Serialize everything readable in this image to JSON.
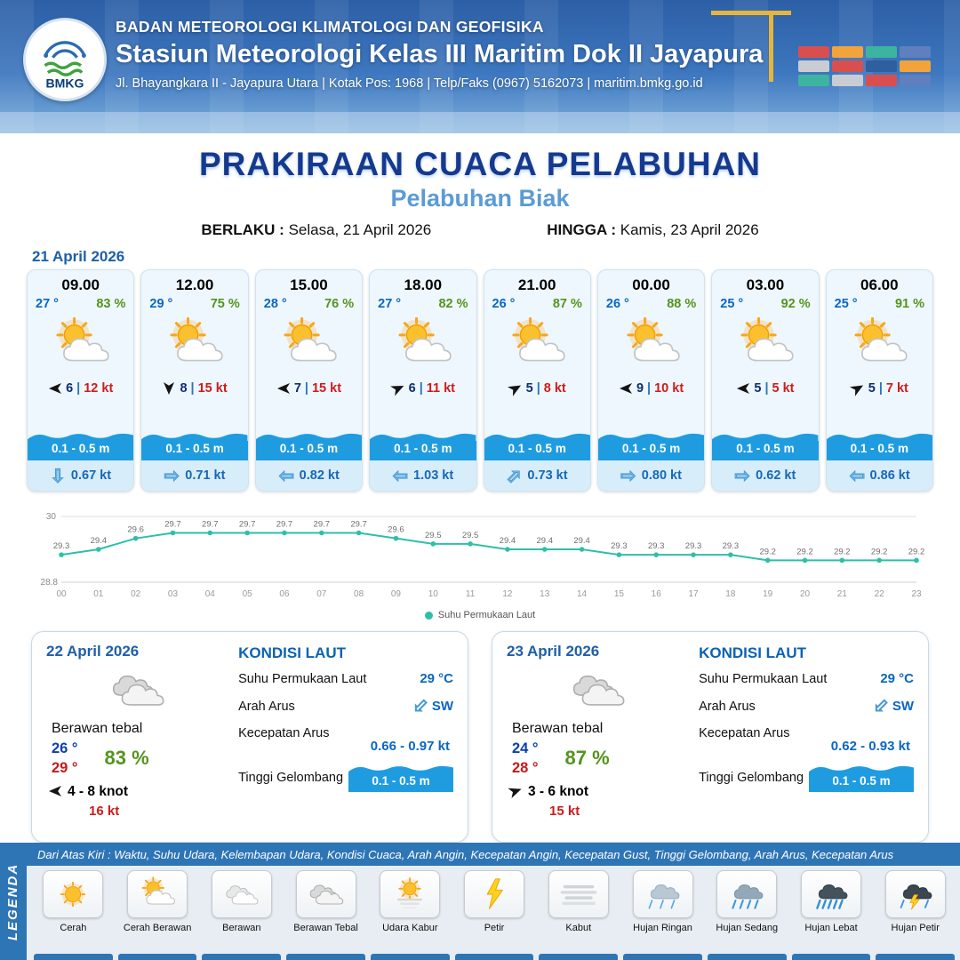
{
  "colors": {
    "header_blue": "#3d77bf",
    "title_navy": "#15398f",
    "port_blue": "#5b9bd5",
    "temp_blue": "#0a66c2",
    "humidity_green": "#55941d",
    "gust_red": "#cf1b1b",
    "wave_blue": "#1f9ce0",
    "current_blue": "#1668b8",
    "chart_teal": "#2fbfa8",
    "legend_blue": "#2e75b6"
  },
  "header": {
    "agency": "BADAN METEOROLOGI KLIMATOLOGI DAN GEOFISIKA",
    "station": "Stasiun Meteorologi Kelas III Maritim Dok II Jayapura",
    "address": "Jl. Bhayangkara II - Jayapura Utara | Kotak Pos: 1968 | Telp/Faks (0967) 5162073 | maritim.bmkg.go.id",
    "logo_text": "BMKG"
  },
  "title": {
    "main": "PRAKIRAAN CUACA PELABUHAN",
    "port": "Pelabuhan Biak",
    "valid_label": "BERLAKU :",
    "valid_value": "Selasa, 21 April 2026",
    "until_label": "HINGGA :",
    "until_value": "Kamis, 23 April 2026"
  },
  "forecast_date": "21 April 2026",
  "forecast_cards": [
    {
      "time": "09.00",
      "temp": "27 °",
      "humidity": "83 %",
      "weather": "cerah-berawan",
      "wind_rot": 180,
      "wind_speed": "6",
      "gust": "12 kt",
      "wave": "0.1 - 0.5 m",
      "current_rot": 90,
      "current_speed": "0.67 kt"
    },
    {
      "time": "12.00",
      "temp": "29 °",
      "humidity": "75 %",
      "weather": "cerah-berawan",
      "wind_rot": 90,
      "wind_speed": "8",
      "gust": "15 kt",
      "wave": "0.1 - 0.5 m",
      "current_rot": 0,
      "current_speed": "0.71 kt"
    },
    {
      "time": "15.00",
      "temp": "28 °",
      "humidity": "76 %",
      "weather": "cerah-berawan",
      "wind_rot": 180,
      "wind_speed": "7",
      "gust": "15 kt",
      "wave": "0.1 - 0.5 m",
      "current_rot": 180,
      "current_speed": "0.82 kt"
    },
    {
      "time": "18.00",
      "temp": "27 °",
      "humidity": "82 %",
      "weather": "cerah-berawan",
      "wind_rot": -25,
      "wind_speed": "6",
      "gust": "11 kt",
      "wave": "0.1 - 0.5 m",
      "current_rot": 180,
      "current_speed": "1.03 kt"
    },
    {
      "time": "21.00",
      "temp": "26 °",
      "humidity": "87 %",
      "weather": "cerah-berawan",
      "wind_rot": -30,
      "wind_speed": "5",
      "gust": "8 kt",
      "wave": "0.1 - 0.5 m",
      "current_rot": -45,
      "current_speed": "0.73 kt"
    },
    {
      "time": "00.00",
      "temp": "26 °",
      "humidity": "88 %",
      "weather": "cerah-berawan",
      "wind_rot": 180,
      "wind_speed": "9",
      "gust": "10 kt",
      "wave": "0.1 - 0.5 m",
      "current_rot": 0,
      "current_speed": "0.80 kt"
    },
    {
      "time": "03.00",
      "temp": "25 °",
      "humidity": "92 %",
      "weather": "cerah-berawan",
      "wind_rot": 180,
      "wind_speed": "5",
      "gust": "5 kt",
      "wave": "0.1 - 0.5 m",
      "current_rot": 0,
      "current_speed": "0.62 kt"
    },
    {
      "time": "06.00",
      "temp": "25 °",
      "humidity": "91 %",
      "weather": "cerah-berawan",
      "wind_rot": -30,
      "wind_speed": "5",
      "gust": "7 kt",
      "wave": "0.1 - 0.5 m",
      "current_rot": 180,
      "current_speed": "0.86 kt"
    }
  ],
  "chart_data": {
    "type": "line",
    "x": [
      "00",
      "01",
      "02",
      "03",
      "04",
      "05",
      "06",
      "07",
      "08",
      "09",
      "10",
      "11",
      "12",
      "13",
      "14",
      "15",
      "16",
      "17",
      "18",
      "19",
      "20",
      "21",
      "22",
      "23"
    ],
    "values": [
      29.3,
      29.4,
      29.6,
      29.7,
      29.7,
      29.7,
      29.7,
      29.7,
      29.7,
      29.6,
      29.5,
      29.5,
      29.4,
      29.4,
      29.4,
      29.3,
      29.3,
      29.3,
      29.3,
      29.2,
      29.2,
      29.2,
      29.2,
      29.2
    ],
    "ylim": [
      28.8,
      30
    ],
    "legend": "Suhu Permukaan Laut",
    "line_color": "#2fbfa8"
  },
  "daily": [
    {
      "date": "22 April 2026",
      "icon": "berawan-tebal",
      "condition": "Berawan tebal",
      "temp_min": "26 °",
      "temp_max": "29 °",
      "humidity": "83 %",
      "wind_rot": 180,
      "wind_range": "4  - 8 knot",
      "gust": "16 kt",
      "sea": {
        "title": "KONDISI LAUT",
        "sst_label": "Suhu Permukaan Laut",
        "sst": "29 °C",
        "dir_label": "Arah Arus",
        "dir": "SW",
        "dir_rot": 135,
        "speed_label": "Kecepatan Arus",
        "speed": "0.66 -  0.97 kt",
        "wave_label": "Tinggi Gelombang",
        "wave": "0.1 - 0.5 m"
      }
    },
    {
      "date": "23 April 2026",
      "icon": "berawan-tebal",
      "condition": "Berawan tebal",
      "temp_min": "24 °",
      "temp_max": "28 °",
      "humidity": "87 %",
      "wind_rot": -20,
      "wind_range": "3  - 6 knot",
      "gust": "15 kt",
      "sea": {
        "title": "KONDISI LAUT",
        "sst_label": "Suhu Permukaan Laut",
        "sst": "29 °C",
        "dir_label": "Arah Arus",
        "dir": "SW",
        "dir_rot": 135,
        "speed_label": "Kecepatan Arus",
        "speed": "0.62  - 0.93 kt",
        "wave_label": "Tinggi Gelombang",
        "wave": "0.1 - 0.5 m"
      }
    }
  ],
  "legend": {
    "title": "LEGENDA",
    "description": "Dari Atas Kiri : Waktu, Suhu Udara, Kelembapan Udara, Kondisi Cuaca, Arah Angin, Kecepatan Angin, Kecepatan Gust, Tinggi Gelombang, Arah Arus, Kecepatan Arus",
    "items": [
      {
        "label": "Cerah",
        "icon": "cerah"
      },
      {
        "label": "Cerah Berawan",
        "icon": "cerah-berawan"
      },
      {
        "label": "Berawan",
        "icon": "berawan"
      },
      {
        "label": "Berawan Tebal",
        "icon": "berawan-tebal"
      },
      {
        "label": "Udara Kabur",
        "icon": "udara-kabur"
      },
      {
        "label": "Petir",
        "icon": "petir"
      },
      {
        "label": "Kabut",
        "icon": "kabut"
      },
      {
        "label": "Hujan Ringan",
        "icon": "hujan-ringan"
      },
      {
        "label": "Hujan Sedang",
        "icon": "hujan-sedang"
      },
      {
        "label": "Hujan Lebat",
        "icon": "hujan-lebat"
      },
      {
        "label": "Hujan Petir",
        "icon": "hujan-petir"
      }
    ]
  }
}
